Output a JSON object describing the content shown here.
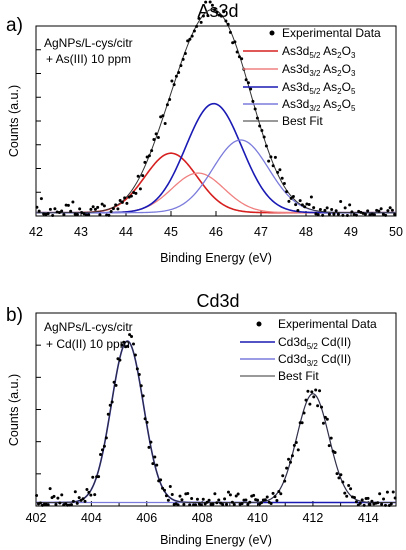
{
  "chart_data": [
    {
      "panel_label": "a)",
      "type": "scatter",
      "title": "As3d",
      "xlabel": "Binding Energy (eV)",
      "ylabel": "Counts (a.u.)",
      "xlim": [
        42,
        50
      ],
      "ylim": [
        0,
        1.15
      ],
      "x_ticks": [
        "42",
        "43",
        "44",
        "45",
        "46",
        "47",
        "48",
        "49",
        "50"
      ],
      "y_ticks_labeled": false,
      "grid": false,
      "legend_position": "top-right",
      "annotation": [
        "AgNPs/L-cys/citr",
        "+ As(III) 10 ppm"
      ],
      "series": [
        {
          "name": "Experimental Data",
          "kind": "points",
          "color": "#000000",
          "model": "sum of peaks + noise"
        },
        {
          "name": "As3d5/2 As2O3",
          "kind": "line",
          "color": "#d62020",
          "center": 45.0,
          "height": 0.36,
          "sigma": 0.58
        },
        {
          "name": "As3d3/2 As2O3",
          "kind": "line",
          "color": "#f08080",
          "center": 45.6,
          "height": 0.24,
          "sigma": 0.58
        },
        {
          "name": "As3d5/2 As2O5",
          "kind": "line",
          "color": "#1a1ab4",
          "center": 45.95,
          "height": 0.66,
          "sigma": 0.62
        },
        {
          "name": "As3d3/2 As2O5",
          "kind": "line",
          "color": "#7b7bdc",
          "center": 46.55,
          "height": 0.44,
          "sigma": 0.62
        },
        {
          "name": "Best Fit",
          "kind": "line",
          "color": "#333333",
          "model": "sum of peaks"
        }
      ]
    },
    {
      "panel_label": "b)",
      "type": "scatter",
      "title": "Cd3d",
      "xlabel": "Binding Energy (eV)",
      "ylabel": "Counts (a.u.)",
      "xlim": [
        402,
        415
      ],
      "ylim": [
        0,
        1.1
      ],
      "x_ticks": [
        "402",
        "404",
        "406",
        "408",
        "410",
        "412",
        "414"
      ],
      "y_ticks_labeled": false,
      "grid": false,
      "legend_position": "top-right",
      "annotation": [
        "AgNPs/L-cys/citr",
        "+ Cd(II) 10 ppm"
      ],
      "series": [
        {
          "name": "Experimental Data",
          "kind": "points",
          "color": "#000000",
          "model": "sum of peaks + noise"
        },
        {
          "name": "Cd3d5/2 Cd(II)",
          "kind": "line",
          "color": "#1a1ab4",
          "center": 405.3,
          "height": 0.92,
          "sigma": 0.58
        },
        {
          "name": "Cd3d3/2 Cd(II)",
          "kind": "line",
          "color": "#7b7bdc",
          "center": 412.0,
          "height": 0.62,
          "sigma": 0.58
        },
        {
          "name": "Best Fit",
          "kind": "line",
          "color": "#333333",
          "model": "sum of peaks"
        }
      ]
    }
  ]
}
